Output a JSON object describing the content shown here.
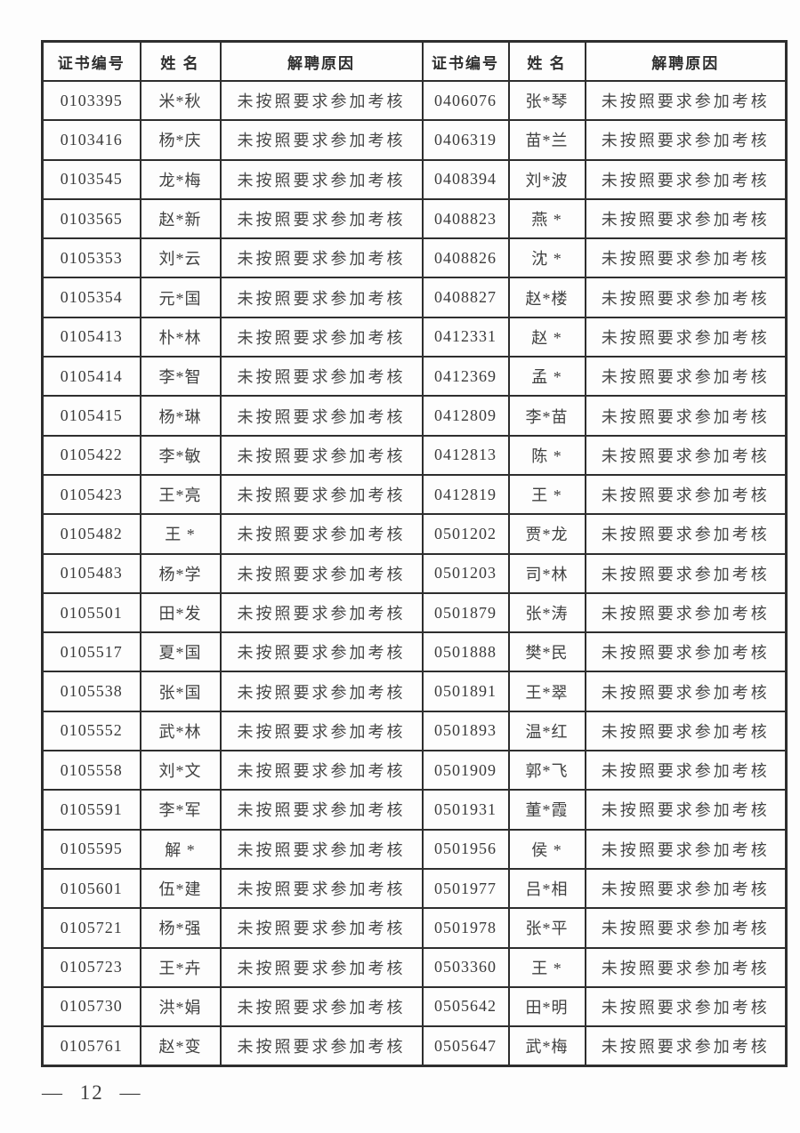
{
  "page": {
    "footer": "— 12 —"
  },
  "table": {
    "headers": [
      "证书编号",
      "姓 名",
      "解聘原因",
      "证书编号",
      "姓 名",
      "解聘原因"
    ],
    "rows": [
      [
        "0103395",
        "米*秋",
        "未按照要求参加考核",
        "0406076",
        "张*琴",
        "未按照要求参加考核"
      ],
      [
        "0103416",
        "杨*庆",
        "未按照要求参加考核",
        "0406319",
        "苗*兰",
        "未按照要求参加考核"
      ],
      [
        "0103545",
        "龙*梅",
        "未按照要求参加考核",
        "0408394",
        "刘*波",
        "未按照要求参加考核"
      ],
      [
        "0103565",
        "赵*新",
        "未按照要求参加考核",
        "0408823",
        "燕 *",
        "未按照要求参加考核"
      ],
      [
        "0105353",
        "刘*云",
        "未按照要求参加考核",
        "0408826",
        "沈 *",
        "未按照要求参加考核"
      ],
      [
        "0105354",
        "元*国",
        "未按照要求参加考核",
        "0408827",
        "赵*楼",
        "未按照要求参加考核"
      ],
      [
        "0105413",
        "朴*林",
        "未按照要求参加考核",
        "0412331",
        "赵 *",
        "未按照要求参加考核"
      ],
      [
        "0105414",
        "李*智",
        "未按照要求参加考核",
        "0412369",
        "孟 *",
        "未按照要求参加考核"
      ],
      [
        "0105415",
        "杨*琳",
        "未按照要求参加考核",
        "0412809",
        "李*苗",
        "未按照要求参加考核"
      ],
      [
        "0105422",
        "李*敏",
        "未按照要求参加考核",
        "0412813",
        "陈 *",
        "未按照要求参加考核"
      ],
      [
        "0105423",
        "王*亮",
        "未按照要求参加考核",
        "0412819",
        "王 *",
        "未按照要求参加考核"
      ],
      [
        "0105482",
        "王 *",
        "未按照要求参加考核",
        "0501202",
        "贾*龙",
        "未按照要求参加考核"
      ],
      [
        "0105483",
        "杨*学",
        "未按照要求参加考核",
        "0501203",
        "司*林",
        "未按照要求参加考核"
      ],
      [
        "0105501",
        "田*发",
        "未按照要求参加考核",
        "0501879",
        "张*涛",
        "未按照要求参加考核"
      ],
      [
        "0105517",
        "夏*国",
        "未按照要求参加考核",
        "0501888",
        "樊*民",
        "未按照要求参加考核"
      ],
      [
        "0105538",
        "张*国",
        "未按照要求参加考核",
        "0501891",
        "王*翠",
        "未按照要求参加考核"
      ],
      [
        "0105552",
        "武*林",
        "未按照要求参加考核",
        "0501893",
        "温*红",
        "未按照要求参加考核"
      ],
      [
        "0105558",
        "刘*文",
        "未按照要求参加考核",
        "0501909",
        "郭*飞",
        "未按照要求参加考核"
      ],
      [
        "0105591",
        "李*军",
        "未按照要求参加考核",
        "0501931",
        "董*霞",
        "未按照要求参加考核"
      ],
      [
        "0105595",
        "解 *",
        "未按照要求参加考核",
        "0501956",
        "侯 *",
        "未按照要求参加考核"
      ],
      [
        "0105601",
        "伍*建",
        "未按照要求参加考核",
        "0501977",
        "吕*相",
        "未按照要求参加考核"
      ],
      [
        "0105721",
        "杨*强",
        "未按照要求参加考核",
        "0501978",
        "张*平",
        "未按照要求参加考核"
      ],
      [
        "0105723",
        "王*卉",
        "未按照要求参加考核",
        "0503360",
        "王 *",
        "未按照要求参加考核"
      ],
      [
        "0105730",
        "洪*娟",
        "未按照要求参加考核",
        "0505642",
        "田*明",
        "未按照要求参加考核"
      ],
      [
        "0105761",
        "赵*变",
        "未按照要求参加考核",
        "0505647",
        "武*梅",
        "未按照要求参加考核"
      ]
    ]
  }
}
